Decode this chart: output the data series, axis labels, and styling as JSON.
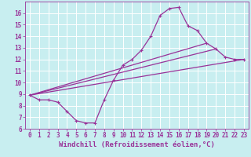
{
  "xlabel": "Windchill (Refroidissement éolien,°C)",
  "background_color": "#c8eef0",
  "line_color": "#993399",
  "grid_color": "#ffffff",
  "xlim": [
    -0.5,
    23.5
  ],
  "ylim": [
    6,
    17
  ],
  "xticks": [
    0,
    1,
    2,
    3,
    4,
    5,
    6,
    7,
    8,
    9,
    10,
    11,
    12,
    13,
    14,
    15,
    16,
    17,
    18,
    19,
    20,
    21,
    22,
    23
  ],
  "yticks": [
    6,
    7,
    8,
    9,
    10,
    11,
    12,
    13,
    14,
    15,
    16
  ],
  "curve1_x": [
    0,
    1,
    2,
    3,
    4,
    5,
    6,
    7,
    8,
    9,
    10,
    11,
    12,
    13,
    14,
    15,
    16,
    17,
    18,
    19,
    20,
    21,
    22,
    23
  ],
  "curve1_y": [
    8.9,
    8.5,
    8.5,
    8.3,
    7.5,
    6.7,
    6.5,
    6.5,
    8.5,
    10.2,
    11.5,
    12.0,
    12.8,
    14.0,
    15.8,
    16.4,
    16.5,
    14.9,
    14.5,
    13.4,
    12.9,
    12.2,
    12.0,
    12.0
  ],
  "line2_x": [
    0,
    23
  ],
  "line2_y": [
    8.9,
    12.0
  ],
  "line3_x": [
    0,
    19
  ],
  "line3_y": [
    8.9,
    13.4
  ],
  "line4_x": [
    0,
    20
  ],
  "line4_y": [
    8.9,
    12.9
  ],
  "marker_size": 3,
  "line_width": 0.9,
  "tick_fontsize": 5.5,
  "xlabel_fontsize": 6.5
}
